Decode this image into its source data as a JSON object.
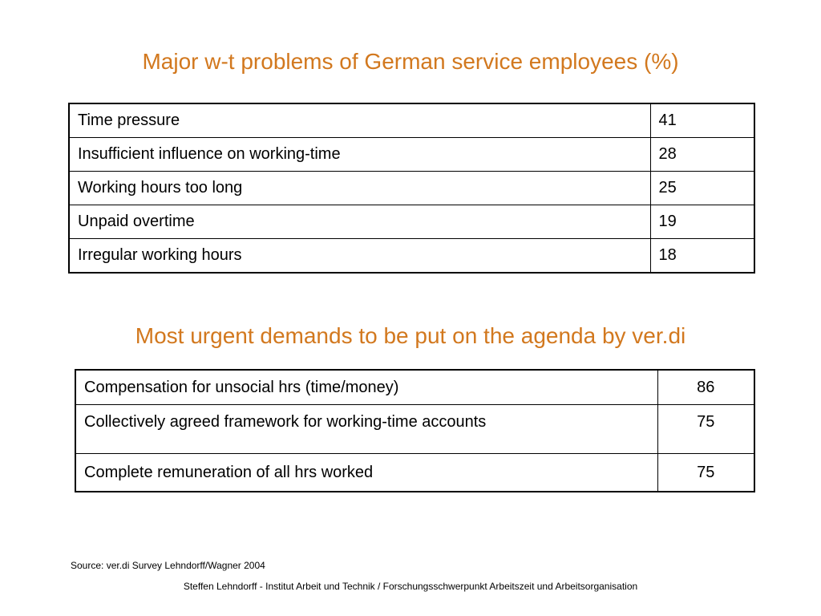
{
  "colors": {
    "title": "#d2781e",
    "text": "#000000",
    "border": "#000000",
    "background": "#ffffff"
  },
  "title1": "Major w-t problems of German service employees (%)",
  "table1": {
    "rows": [
      {
        "label": "Time pressure",
        "value": "41"
      },
      {
        "label": "Insufficient influence on working-time",
        "value": "28"
      },
      {
        "label": "Working hours too long",
        "value": "25"
      },
      {
        "label": "Unpaid overtime",
        "value": "19"
      },
      {
        "label": "Irregular working hours",
        "value": "18"
      }
    ]
  },
  "title2": "Most urgent demands to be put on the agenda by ver.di",
  "table2": {
    "rows": [
      {
        "label": "Compensation for unsocial hrs (time/money)",
        "value": "86"
      },
      {
        "label": "Collectively agreed framework for working-time accounts",
        "value": "75"
      },
      {
        "label": "Complete remuneration of all hrs worked",
        "value": "75"
      }
    ]
  },
  "source": "Source: ver.di Survey Lehndorff/Wagner 2004",
  "footer": "Steffen Lehndorff - Institut Arbeit und Technik / Forschungsschwerpunkt Arbeitszeit und Arbeitsorganisation"
}
